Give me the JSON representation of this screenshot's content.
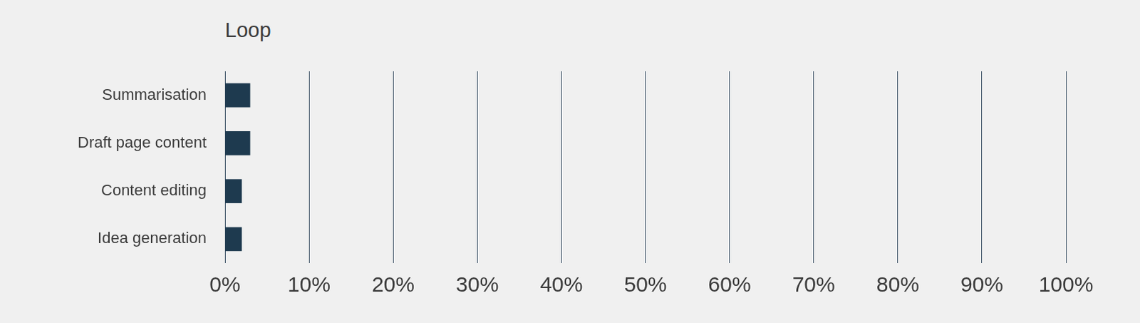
{
  "chart_data": {
    "type": "bar",
    "title": "Loop",
    "orientation": "horizontal",
    "categories": [
      "Summarisation",
      "Draft page content",
      "Content editing",
      "Idea generation"
    ],
    "values": [
      3,
      3,
      2,
      2
    ],
    "color": "#1e3a4f",
    "xlim": [
      0,
      100
    ],
    "xticks": [
      {
        "value": 0,
        "label": "0%"
      },
      {
        "value": 10,
        "label": "10%"
      },
      {
        "value": 20,
        "label": "20%"
      },
      {
        "value": 30,
        "label": "30%"
      },
      {
        "value": 40,
        "label": "40%"
      },
      {
        "value": 50,
        "label": "50%"
      },
      {
        "value": 60,
        "label": "60%"
      },
      {
        "value": 70,
        "label": "70%"
      },
      {
        "value": 80,
        "label": "80%"
      },
      {
        "value": 90,
        "label": "90%"
      },
      {
        "value": 100,
        "label": "100%"
      }
    ],
    "grid": true
  }
}
